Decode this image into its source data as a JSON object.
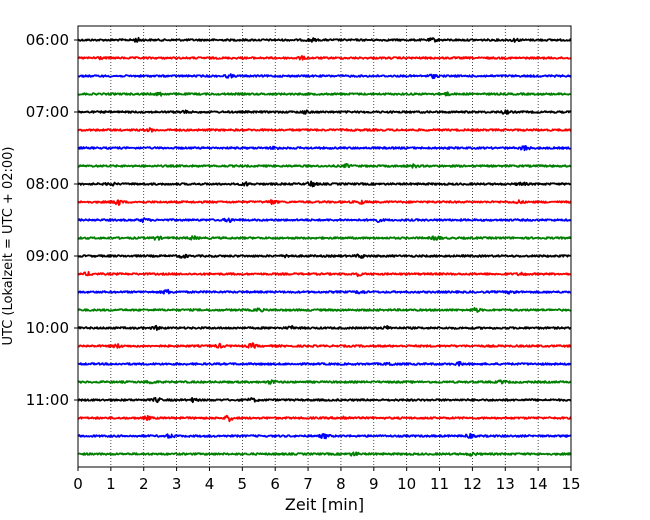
{
  "chart_data": {
    "type": "line",
    "title": "",
    "xlabel": "Zeit  [min]",
    "ylabel": "UTC (Lokalzeit = UTC + 02:00)",
    "xlim": [
      0,
      15
    ],
    "x_ticks": [
      "0",
      "1",
      "2",
      "3",
      "4",
      "5",
      "6",
      "7",
      "8",
      "9",
      "10",
      "11",
      "12",
      "13",
      "14",
      "15"
    ],
    "y_tick_labels": [
      "06:00",
      "07:00",
      "08:00",
      "09:00",
      "10:00",
      "11:00"
    ],
    "grid": "vertical-dotted",
    "trace_interval_minutes": 15,
    "colors": [
      "#000000",
      "#ff0000",
      "#0000ff",
      "#008000"
    ],
    "series": [
      {
        "start": "06:00",
        "color": "#000000",
        "events": [
          [
            1.8,
            1.5
          ],
          [
            7.1,
            1.4
          ],
          [
            10.8,
            1.3
          ],
          [
            13.3,
            1.2
          ]
        ]
      },
      {
        "start": "06:15",
        "color": "#ff0000",
        "events": [
          [
            0.6,
            1.3
          ],
          [
            6.8,
            1.2
          ]
        ]
      },
      {
        "start": "06:30",
        "color": "#0000ff",
        "events": [
          [
            4.6,
            1.3
          ],
          [
            10.8,
            1.4
          ]
        ]
      },
      {
        "start": "06:45",
        "color": "#008000",
        "events": [
          [
            2.5,
            1.3
          ],
          [
            11.2,
            1.2
          ]
        ]
      },
      {
        "start": "07:00",
        "color": "#000000",
        "events": [
          [
            3.2,
            1.2
          ],
          [
            6.9,
            1.2
          ],
          [
            13.0,
            1.4
          ]
        ]
      },
      {
        "start": "07:15",
        "color": "#ff0000",
        "events": [
          [
            2.2,
            1.2
          ]
        ]
      },
      {
        "start": "07:30",
        "color": "#0000ff",
        "events": [
          [
            13.6,
            2.2
          ],
          [
            6.0,
            1.2
          ]
        ]
      },
      {
        "start": "07:45",
        "color": "#008000",
        "events": [
          [
            8.2,
            1.3
          ],
          [
            10.2,
            1.2
          ]
        ]
      },
      {
        "start": "08:00",
        "color": "#000000",
        "events": [
          [
            7.1,
            2.6
          ],
          [
            5.1,
            1.5
          ],
          [
            1.0,
            1.3
          ],
          [
            13.5,
            1.3
          ]
        ]
      },
      {
        "start": "08:15",
        "color": "#ff0000",
        "events": [
          [
            1.2,
            2.8
          ],
          [
            5.9,
            1.8
          ],
          [
            8.6,
            1.4
          ],
          [
            13.4,
            1.2
          ]
        ]
      },
      {
        "start": "08:30",
        "color": "#0000ff",
        "events": [
          [
            2.0,
            1.5
          ],
          [
            4.6,
            1.7
          ],
          [
            9.1,
            1.3
          ]
        ]
      },
      {
        "start": "08:45",
        "color": "#008000",
        "events": [
          [
            10.9,
            1.8
          ],
          [
            2.4,
            1.4
          ],
          [
            3.5,
            1.3
          ]
        ]
      },
      {
        "start": "09:00",
        "color": "#000000",
        "events": [
          [
            3.2,
            1.5
          ],
          [
            8.6,
            1.6
          ],
          [
            6.4,
            1.3
          ]
        ]
      },
      {
        "start": "09:15",
        "color": "#ff0000",
        "events": [
          [
            0.3,
            1.3
          ],
          [
            8.5,
            1.4
          ],
          [
            13.5,
            1.2
          ]
        ]
      },
      {
        "start": "09:30",
        "color": "#0000ff",
        "events": [
          [
            2.7,
            1.8
          ],
          [
            13.2,
            1.5
          ],
          [
            8.6,
            1.3
          ]
        ]
      },
      {
        "start": "09:45",
        "color": "#008000",
        "events": [
          [
            12.1,
            1.6
          ],
          [
            5.5,
            1.3
          ]
        ]
      },
      {
        "start": "10:00",
        "color": "#000000",
        "events": [
          [
            2.4,
            1.4
          ],
          [
            6.5,
            1.3
          ],
          [
            9.4,
            1.3
          ]
        ]
      },
      {
        "start": "10:15",
        "color": "#ff0000",
        "events": [
          [
            5.3,
            2.0
          ],
          [
            1.2,
            1.4
          ],
          [
            4.3,
            1.5
          ]
        ]
      },
      {
        "start": "10:30",
        "color": "#0000ff",
        "events": [
          [
            9.5,
            1.3
          ],
          [
            11.6,
            1.3
          ]
        ]
      },
      {
        "start": "10:45",
        "color": "#008000",
        "events": [
          [
            5.9,
            1.7
          ],
          [
            2.2,
            1.4
          ],
          [
            12.9,
            1.3
          ]
        ]
      },
      {
        "start": "11:00",
        "color": "#000000",
        "events": [
          [
            2.4,
            1.8
          ],
          [
            3.5,
            1.5
          ],
          [
            5.3,
            1.5
          ]
        ]
      },
      {
        "start": "11:15",
        "color": "#ff0000",
        "events": [
          [
            4.6,
            2.4
          ],
          [
            2.1,
            1.3
          ],
          [
            8.1,
            1.3
          ]
        ]
      },
      {
        "start": "11:30",
        "color": "#0000ff",
        "events": [
          [
            7.5,
            1.9
          ],
          [
            2.8,
            1.5
          ],
          [
            11.9,
            1.6
          ]
        ]
      },
      {
        "start": "11:45",
        "color": "#008000",
        "events": [
          [
            8.4,
            1.5
          ],
          [
            12.0,
            1.3
          ]
        ]
      }
    ]
  }
}
